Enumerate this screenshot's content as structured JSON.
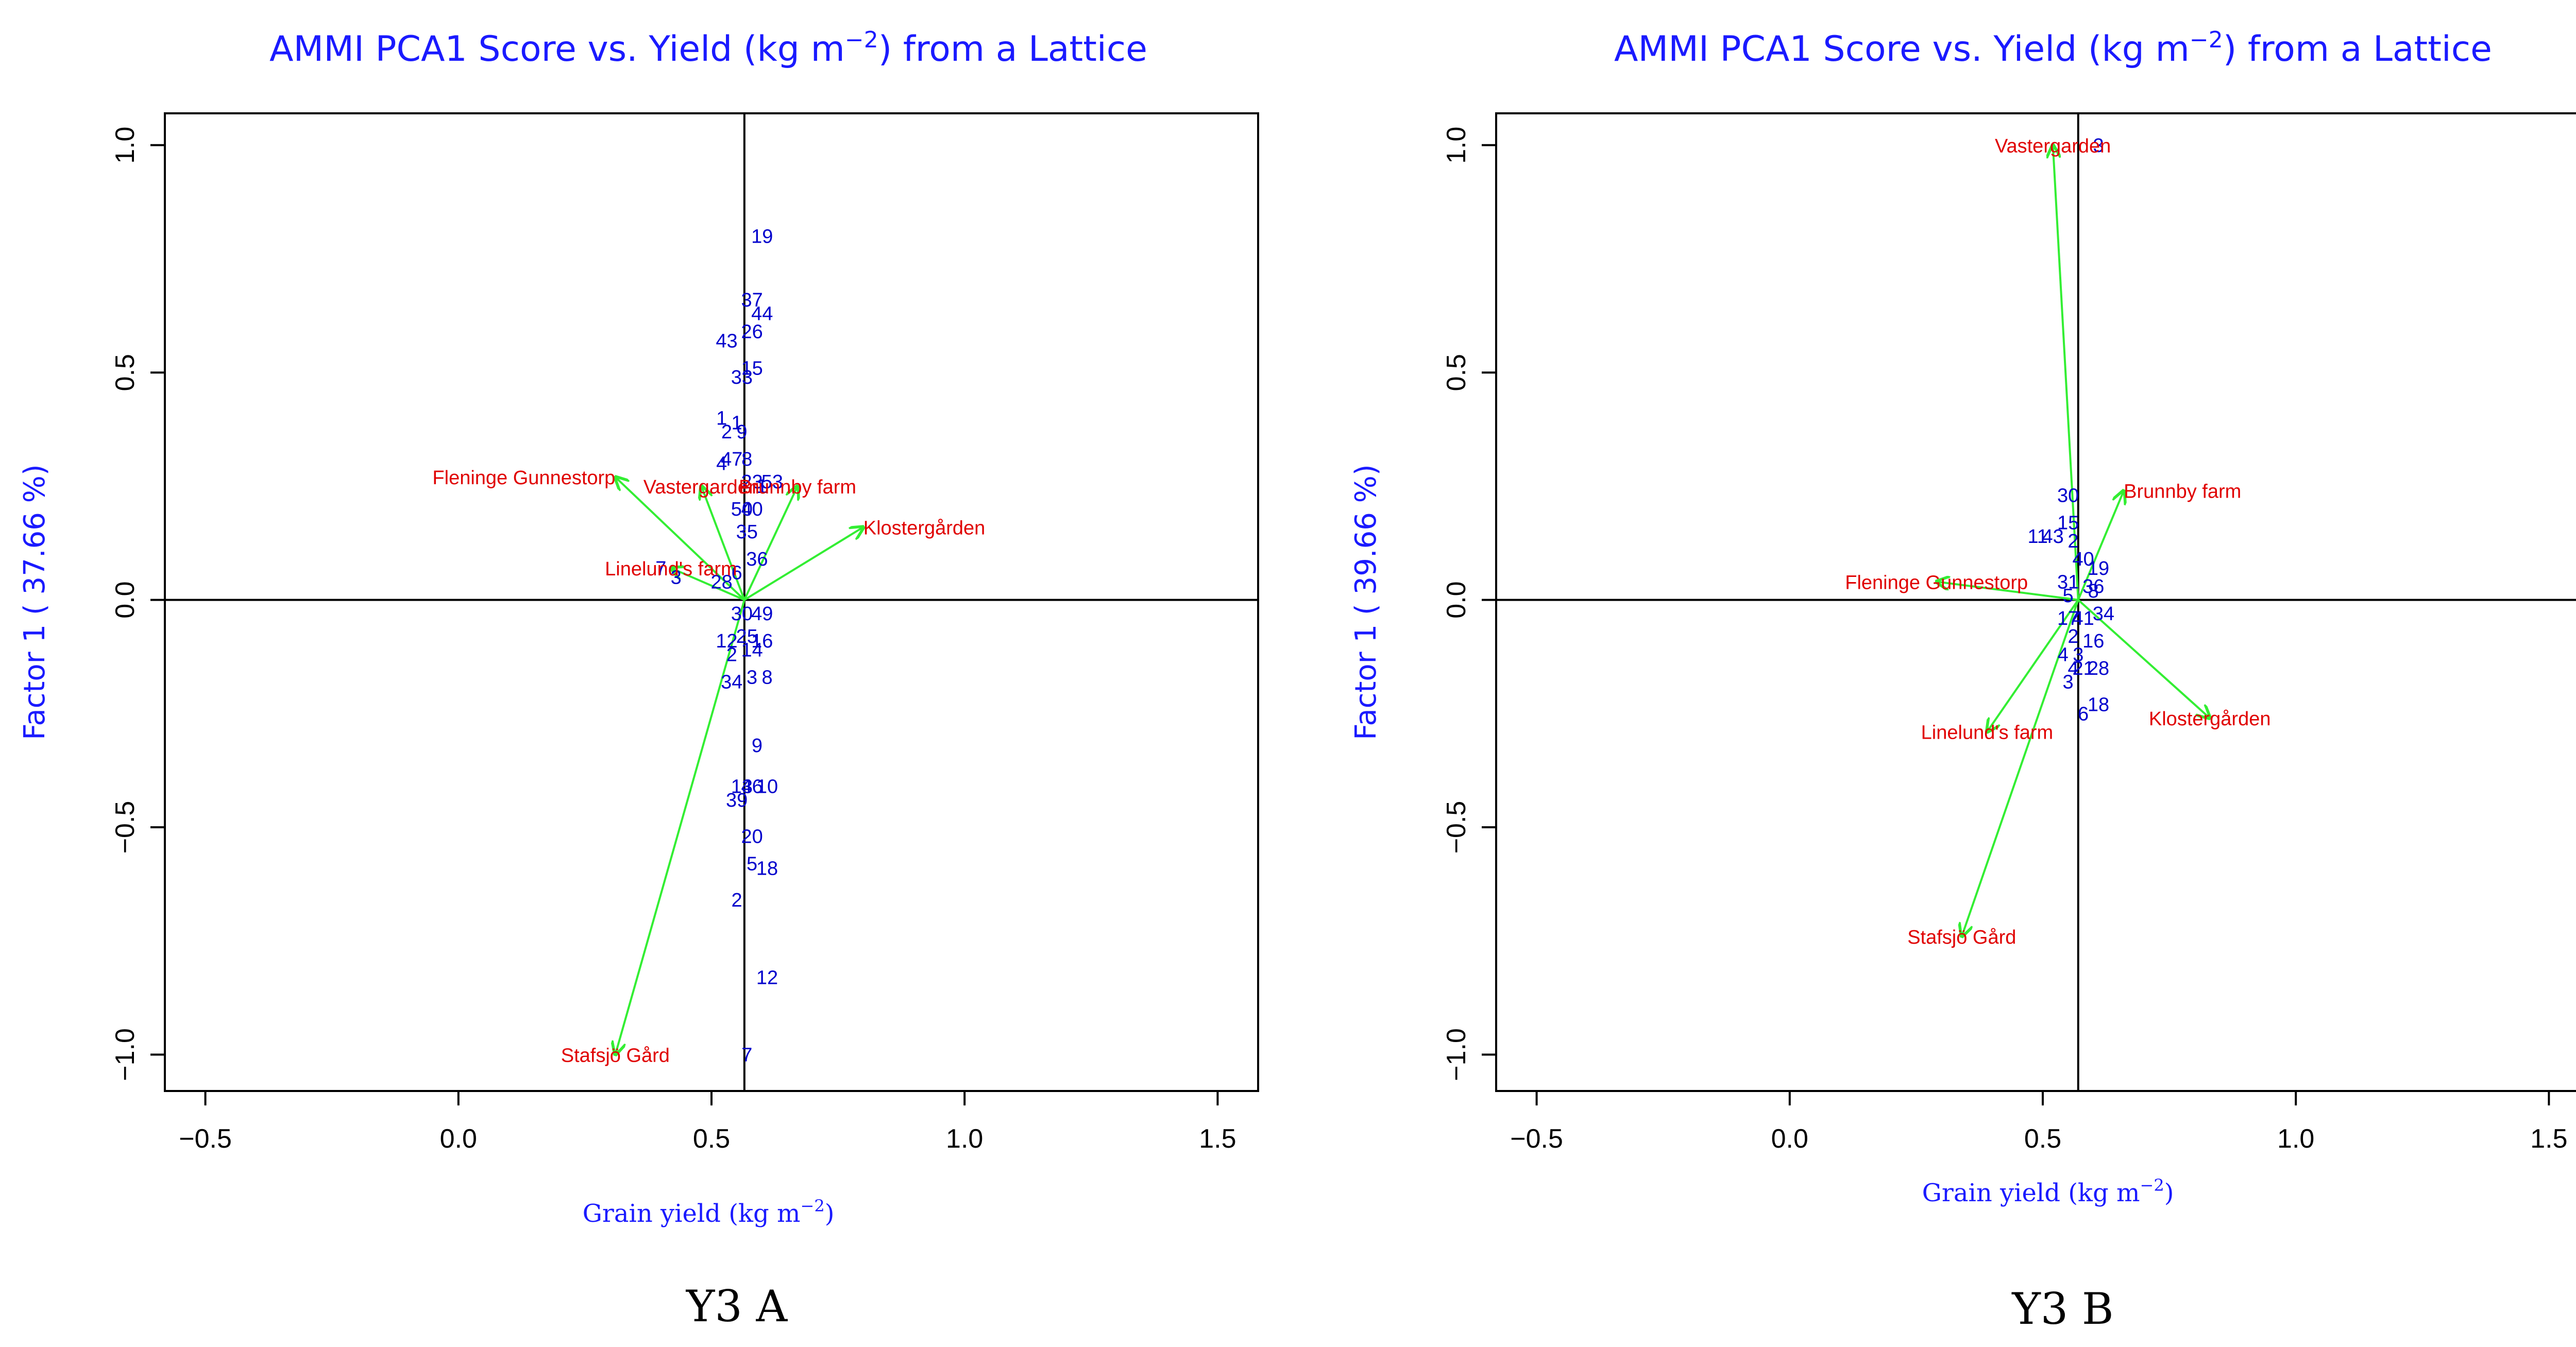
{
  "chart_data": [
    {
      "type": "scatter",
      "panel_label": "Y3 A",
      "title_prefix": "AMMI PCA1 Score vs. Yield (kg m",
      "title_sup": "−2",
      "title_suffix": ") from a Lattice",
      "xlabel_prefix": "Grain yield (kg m",
      "xlabel_sup": "−2",
      "xlabel_suffix": ")",
      "ylabel": "Factor 1 ( 37.66 %)",
      "xlim": [
        -0.58,
        1.58
      ],
      "ylim": [
        -1.08,
        1.07
      ],
      "xticks": [
        "−0.5",
        "0.0",
        "0.5",
        "1.0",
        "1.5"
      ],
      "xtick_values": [
        -0.5,
        0,
        0.5,
        1.0,
        1.5
      ],
      "yticks": [
        "−1.0",
        "−0.5",
        "0.0",
        "0.5",
        "1.0"
      ],
      "ytick_values": [
        -1.0,
        -0.5,
        0,
        0.5,
        1.0
      ],
      "origin": [
        0.565,
        0.0
      ],
      "genotypes": [
        {
          "label": "19",
          "x": 0.6,
          "y": 0.8
        },
        {
          "label": "37",
          "x": 0.58,
          "y": 0.66
        },
        {
          "label": "44",
          "x": 0.6,
          "y": 0.63
        },
        {
          "label": "26",
          "x": 0.58,
          "y": 0.59
        },
        {
          "label": "43",
          "x": 0.53,
          "y": 0.57
        },
        {
          "label": "15",
          "x": 0.58,
          "y": 0.51
        },
        {
          "label": "33",
          "x": 0.56,
          "y": 0.49
        },
        {
          "label": "1",
          "x": 0.52,
          "y": 0.4
        },
        {
          "label": "1",
          "x": 0.55,
          "y": 0.39
        },
        {
          "label": "2",
          "x": 0.53,
          "y": 0.37
        },
        {
          "label": "9",
          "x": 0.56,
          "y": 0.37
        },
        {
          "label": "47",
          "x": 0.54,
          "y": 0.31
        },
        {
          "label": "8",
          "x": 0.57,
          "y": 0.31
        },
        {
          "label": "4",
          "x": 0.52,
          "y": 0.3
        },
        {
          "label": "23",
          "x": 0.58,
          "y": 0.26
        },
        {
          "label": "53",
          "x": 0.62,
          "y": 0.26
        },
        {
          "label": "1",
          "x": 0.6,
          "y": 0.25
        },
        {
          "label": "50",
          "x": 0.56,
          "y": 0.2
        },
        {
          "label": "40",
          "x": 0.58,
          "y": 0.2
        },
        {
          "label": "35",
          "x": 0.57,
          "y": 0.15
        },
        {
          "label": "36",
          "x": 0.59,
          "y": 0.09
        },
        {
          "label": "7",
          "x": 0.4,
          "y": 0.07
        },
        {
          "label": "3",
          "x": 0.43,
          "y": 0.05
        },
        {
          "label": "28",
          "x": 0.52,
          "y": 0.04
        },
        {
          "label": "6",
          "x": 0.55,
          "y": 0.06
        },
        {
          "label": "30",
          "x": 0.56,
          "y": -0.03
        },
        {
          "label": "49",
          "x": 0.6,
          "y": -0.03
        },
        {
          "label": "12",
          "x": 0.53,
          "y": -0.09
        },
        {
          "label": "25",
          "x": 0.57,
          "y": -0.08
        },
        {
          "label": "16",
          "x": 0.6,
          "y": -0.09
        },
        {
          "label": "2",
          "x": 0.54,
          "y": -0.12
        },
        {
          "label": "14",
          "x": 0.58,
          "y": -0.11
        },
        {
          "label": "34",
          "x": 0.54,
          "y": -0.18
        },
        {
          "label": "3",
          "x": 0.58,
          "y": -0.17
        },
        {
          "label": "8",
          "x": 0.61,
          "y": -0.17
        },
        {
          "label": "9",
          "x": 0.59,
          "y": -0.32
        },
        {
          "label": "13",
          "x": 0.56,
          "y": -0.41
        },
        {
          "label": "46",
          "x": 0.58,
          "y": -0.41
        },
        {
          "label": "10",
          "x": 0.61,
          "y": -0.41
        },
        {
          "label": "39",
          "x": 0.55,
          "y": -0.44
        },
        {
          "label": "20",
          "x": 0.58,
          "y": -0.52
        },
        {
          "label": "5",
          "x": 0.58,
          "y": -0.58
        },
        {
          "label": "18",
          "x": 0.61,
          "y": -0.59
        },
        {
          "label": "2",
          "x": 0.55,
          "y": -0.66
        },
        {
          "label": "12",
          "x": 0.61,
          "y": -0.83
        },
        {
          "label": "7",
          "x": 0.57,
          "y": -1.0
        }
      ],
      "environments": [
        {
          "label": "Fleninge Gunnestorp",
          "x": 0.31,
          "y": 0.27,
          "anchor": "end"
        },
        {
          "label": "Vastergarden",
          "x": 0.48,
          "y": 0.25,
          "anchor": "middle"
        },
        {
          "label": "Brunnby farm",
          "x": 0.67,
          "y": 0.25,
          "anchor": "middle"
        },
        {
          "label": "Klostergården",
          "x": 0.8,
          "y": 0.16,
          "anchor": "start"
        },
        {
          "label": "Linelund's farm",
          "x": 0.42,
          "y": 0.07,
          "anchor": "middle"
        },
        {
          "label": "Stafsjö Gård",
          "x": 0.31,
          "y": -1.0,
          "anchor": "middle"
        }
      ]
    },
    {
      "type": "scatter",
      "panel_label": "Y3 B",
      "title_prefix": "AMMI PCA1 Score vs. Yield (kg m",
      "title_sup": "−2",
      "title_suffix": ") from a Lattice",
      "xlabel_prefix": "Grain yield (kg m",
      "xlabel_sup": "−2",
      "xlabel_suffix": ")",
      "ylabel": "Factor 1 ( 39.66 %)",
      "xlim": [
        -0.58,
        1.58
      ],
      "ylim": [
        -1.08,
        1.07
      ],
      "xticks": [
        "−0.5",
        "0.0",
        "0.5",
        "1.0",
        "1.5"
      ],
      "xtick_values": [
        -0.5,
        0,
        0.5,
        1.0,
        1.5
      ],
      "yticks": [
        "−1.0",
        "−0.5",
        "0.0",
        "0.5",
        "1.0"
      ],
      "ytick_values": [
        -1.0,
        -0.5,
        0,
        0.5,
        1.0
      ],
      "origin": [
        0.57,
        0.0
      ],
      "genotypes": [
        {
          "label": "3",
          "x": 0.61,
          "y": 1.0
        },
        {
          "label": "30",
          "x": 0.55,
          "y": 0.23
        },
        {
          "label": "15",
          "x": 0.55,
          "y": 0.17
        },
        {
          "label": "11",
          "x": 0.49,
          "y": 0.14
        },
        {
          "label": "43",
          "x": 0.52,
          "y": 0.14
        },
        {
          "label": "2",
          "x": 0.56,
          "y": 0.13
        },
        {
          "label": "40",
          "x": 0.58,
          "y": 0.09
        },
        {
          "label": "19",
          "x": 0.61,
          "y": 0.07
        },
        {
          "label": "31",
          "x": 0.55,
          "y": 0.04
        },
        {
          "label": "36",
          "x": 0.6,
          "y": 0.03
        },
        {
          "label": "8",
          "x": 0.6,
          "y": 0.02
        },
        {
          "label": "5",
          "x": 0.55,
          "y": 0.01
        },
        {
          "label": "34",
          "x": 0.62,
          "y": -0.03
        },
        {
          "label": "17",
          "x": 0.55,
          "y": -0.04
        },
        {
          "label": "41",
          "x": 0.58,
          "y": -0.04
        },
        {
          "label": "2",
          "x": 0.56,
          "y": -0.08
        },
        {
          "label": "16",
          "x": 0.6,
          "y": -0.09
        },
        {
          "label": "4",
          "x": 0.54,
          "y": -0.12
        },
        {
          "label": "3",
          "x": 0.57,
          "y": -0.12
        },
        {
          "label": "4",
          "x": 0.56,
          "y": -0.15
        },
        {
          "label": "21",
          "x": 0.58,
          "y": -0.15
        },
        {
          "label": "28",
          "x": 0.61,
          "y": -0.15
        },
        {
          "label": "3",
          "x": 0.55,
          "y": -0.18
        },
        {
          "label": "6",
          "x": 0.58,
          "y": -0.25
        },
        {
          "label": "18",
          "x": 0.61,
          "y": -0.23
        }
      ],
      "environments": [
        {
          "label": "Vastergarden",
          "x": 0.52,
          "y": 1.0,
          "anchor": "middle"
        },
        {
          "label": "Brunnby farm",
          "x": 0.66,
          "y": 0.24,
          "anchor": "start"
        },
        {
          "label": "Fleninge Gunnestorp",
          "x": 0.29,
          "y": 0.04,
          "anchor": "middle"
        },
        {
          "label": "Linelund's farm",
          "x": 0.39,
          "y": -0.29,
          "anchor": "middle"
        },
        {
          "label": "Klostergården",
          "x": 0.83,
          "y": -0.26,
          "anchor": "middle"
        },
        {
          "label": "Stafsjö Gård",
          "x": 0.34,
          "y": -0.74,
          "anchor": "middle"
        }
      ]
    }
  ]
}
